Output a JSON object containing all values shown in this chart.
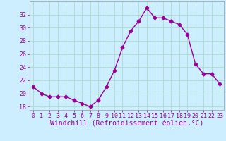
{
  "x": [
    0,
    1,
    2,
    3,
    4,
    5,
    6,
    7,
    8,
    9,
    10,
    11,
    12,
    13,
    14,
    15,
    16,
    17,
    18,
    19,
    20,
    21,
    22,
    23
  ],
  "y": [
    21,
    20,
    19.5,
    19.5,
    19.5,
    19,
    18.5,
    18,
    19,
    21,
    23.5,
    27,
    29.5,
    31,
    33,
    31.5,
    31.5,
    31,
    30.5,
    29,
    24.5,
    23,
    23,
    21.5
  ],
  "line_color": "#990099",
  "marker": "D",
  "marker_size": 2.5,
  "bg_color": "#cceeff",
  "grid_color": "#aaddcc",
  "xlabel": "Windchill (Refroidissement éolien,°C)",
  "xlabel_fontsize": 7,
  "tick_label_color": "#990099",
  "tick_label_fontsize": 6,
  "ylim": [
    17.5,
    34
  ],
  "xlim": [
    -0.5,
    23.5
  ],
  "yticks": [
    18,
    20,
    22,
    24,
    26,
    28,
    30,
    32
  ],
  "xticks": [
    0,
    1,
    2,
    3,
    4,
    5,
    6,
    7,
    8,
    9,
    10,
    11,
    12,
    13,
    14,
    15,
    16,
    17,
    18,
    19,
    20,
    21,
    22,
    23
  ]
}
